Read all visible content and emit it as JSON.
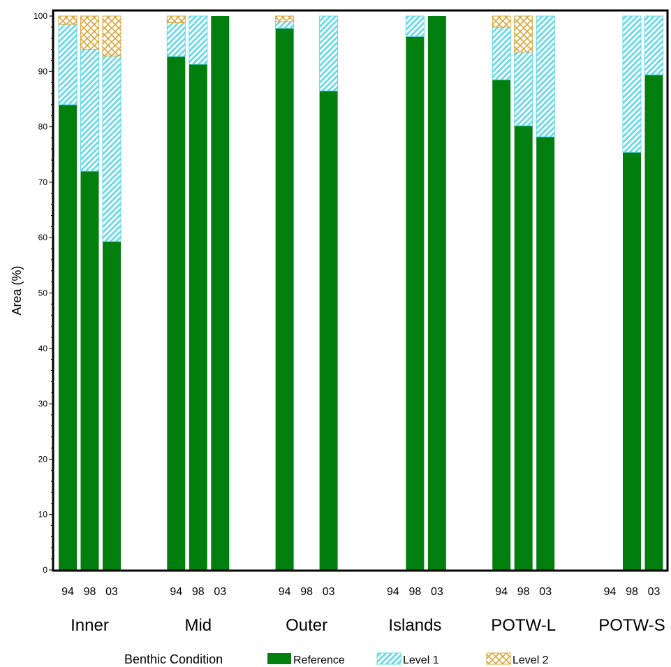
{
  "chart_data": {
    "type": "bar",
    "stacked": true,
    "ylabel": "Area (%)",
    "ylim": [
      0,
      100
    ],
    "yticks": [
      0,
      10,
      20,
      30,
      40,
      50,
      60,
      70,
      80,
      90,
      100
    ],
    "years": [
      "94",
      "98",
      "03"
    ],
    "groups": [
      {
        "name": "Inner",
        "bars": [
          {
            "year": "94",
            "reference": 84,
            "level1": 14.5,
            "level2": 1.5
          },
          {
            "year": "98",
            "reference": 72,
            "level1": 22,
            "level2": 6
          },
          {
            "year": "03",
            "reference": 59.3,
            "level1": 33.5,
            "level2": 7.2
          }
        ]
      },
      {
        "name": "Mid",
        "bars": [
          {
            "year": "94",
            "reference": 92.7,
            "level1": 6.1,
            "level2": 1.2
          },
          {
            "year": "98",
            "reference": 91.3,
            "level1": 8.7,
            "level2": 0
          },
          {
            "year": "03",
            "reference": 100,
            "level1": 0,
            "level2": 0
          }
        ]
      },
      {
        "name": "Outer",
        "bars": [
          {
            "year": "94",
            "reference": 97.8,
            "level1": 1.2,
            "level2": 1.0
          },
          {
            "year": "98",
            "reference": null,
            "level1": null,
            "level2": null
          },
          {
            "year": "03",
            "reference": 86.5,
            "level1": 13.5,
            "level2": 0
          }
        ]
      },
      {
        "name": "Islands",
        "bars": [
          {
            "year": "94",
            "reference": null,
            "level1": null,
            "level2": null
          },
          {
            "year": "98",
            "reference": 96.3,
            "level1": 3.7,
            "level2": 0
          },
          {
            "year": "03",
            "reference": 100,
            "level1": 0,
            "level2": 0
          }
        ]
      },
      {
        "name": "POTW-L",
        "bars": [
          {
            "year": "94",
            "reference": 88.5,
            "level1": 9.5,
            "level2": 2.0
          },
          {
            "year": "98",
            "reference": 80.2,
            "level1": 13.3,
            "level2": 6.5
          },
          {
            "year": "03",
            "reference": 78.2,
            "level1": 21.8,
            "level2": 0
          }
        ]
      },
      {
        "name": "POTW-S",
        "bars": [
          {
            "year": "94",
            "reference": null,
            "level1": null,
            "level2": null
          },
          {
            "year": "98",
            "reference": 75.4,
            "level1": 24.6,
            "level2": 0
          },
          {
            "year": "03",
            "reference": 89.4,
            "level1": 10.6,
            "level2": 0
          }
        ]
      }
    ],
    "legend": {
      "title": "Benthic Condition",
      "placement": "bottom",
      "items": [
        {
          "key": "reference",
          "label": "Reference",
          "color": "#007f0e"
        },
        {
          "key": "level1",
          "label": "Level 1",
          "color": "#5fd9ea"
        },
        {
          "key": "level2",
          "label": "Level 2",
          "color": "#d9a53a"
        }
      ]
    },
    "grid": false
  }
}
